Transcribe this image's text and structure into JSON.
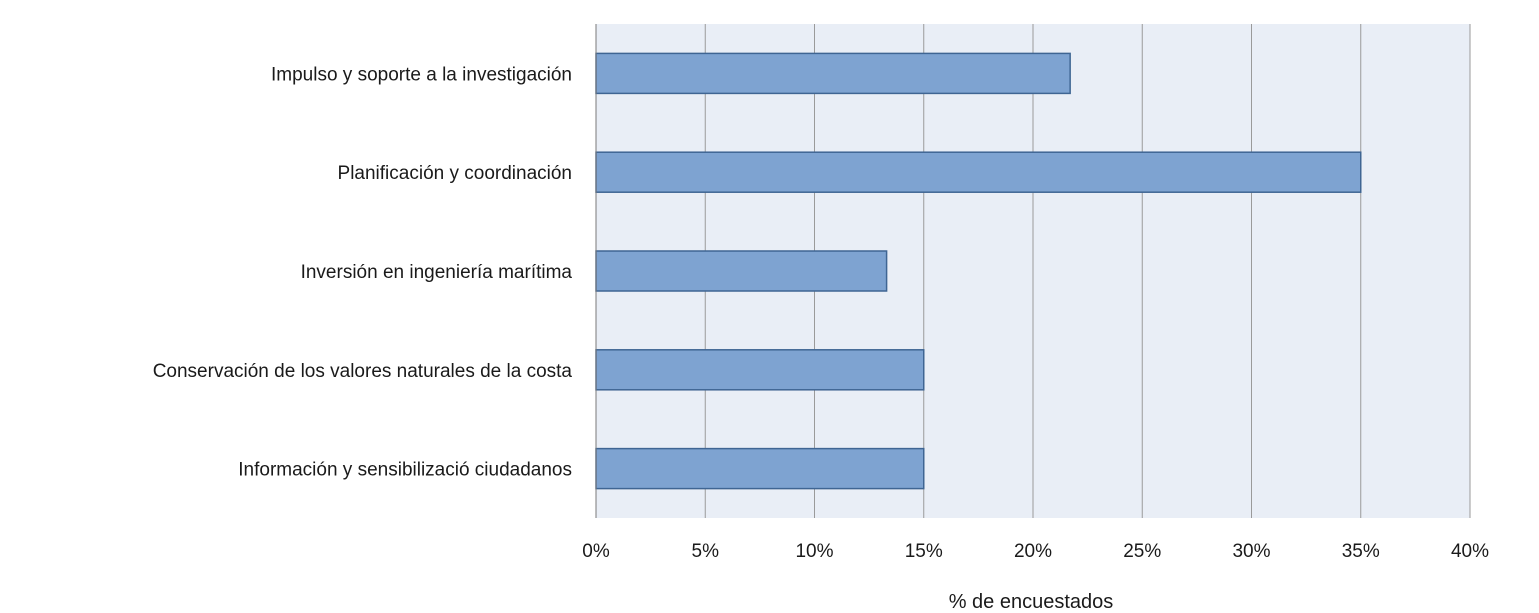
{
  "chart_data": {
    "type": "bar",
    "orientation": "horizontal",
    "categories": [
      "Impulso y soporte a la investigación",
      "Planificación y coordinación",
      "Inversión en ingeniería marítima",
      "Conservación de los valores naturales de la costa",
      "Información y sensibilizació ciudadanos"
    ],
    "values": [
      21.7,
      35.0,
      13.3,
      15.0,
      15.0
    ],
    "xlabel": "% de encuestados",
    "xlim": [
      0,
      40
    ],
    "xticks": [
      0,
      5,
      10,
      15,
      20,
      25,
      30,
      35,
      40
    ],
    "xtick_labels": [
      "0%",
      "5%",
      "10%",
      "15%",
      "20%",
      "25%",
      "30%",
      "35%",
      "40%"
    ],
    "grid": true,
    "legend": "none",
    "colors": {
      "bar_fill": "#7ea3d1",
      "bar_stroke": "#3f6593",
      "plot_background": "#e9eef6",
      "grid": "#9a9a9a",
      "text": "#1a1a1a"
    }
  }
}
